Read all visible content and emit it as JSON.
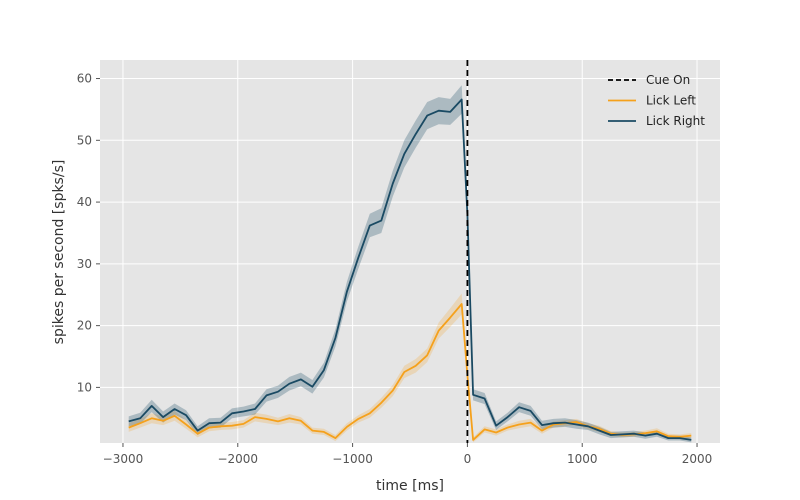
{
  "chart_data": {
    "type": "line",
    "xlabel": "time [ms]",
    "ylabel": "spikes per second [spks/s]",
    "xlim": [
      -3200,
      2200
    ],
    "ylim": [
      1,
      63
    ],
    "xticks": [
      -3000,
      -2000,
      -1000,
      0,
      1000,
      2000
    ],
    "yticks": [
      10,
      20,
      30,
      40,
      50,
      60
    ],
    "xtick_labels": [
      "−3000",
      "−2000",
      "−1000",
      "0",
      "1000",
      "2000"
    ],
    "ytick_labels": [
      "10",
      "20",
      "30",
      "40",
      "50",
      "60"
    ],
    "grid": true,
    "legend_position": "top-right",
    "cue": {
      "name": "Cue On",
      "x": 0,
      "color": "#000000"
    },
    "x": [
      -2950,
      -2850,
      -2750,
      -2650,
      -2550,
      -2450,
      -2350,
      -2250,
      -2150,
      -2050,
      -1950,
      -1850,
      -1750,
      -1650,
      -1550,
      -1450,
      -1350,
      -1250,
      -1150,
      -1050,
      -950,
      -850,
      -750,
      -650,
      -550,
      -450,
      -350,
      -250,
      -150,
      -50,
      0,
      50,
      150,
      250,
      350,
      450,
      550,
      650,
      750,
      850,
      950,
      1050,
      1150,
      1250,
      1350,
      1450,
      1550,
      1650,
      1750,
      1850,
      1950
    ],
    "series": [
      {
        "name": "Lick Left",
        "color": "#f5a11c",
        "values": [
          3.5,
          4.2,
          5.0,
          4.6,
          5.4,
          4.0,
          2.5,
          3.5,
          3.7,
          3.8,
          4.1,
          5.2,
          4.9,
          4.5,
          5.0,
          4.6,
          3.0,
          2.8,
          1.8,
          3.6,
          4.9,
          5.8,
          7.5,
          9.5,
          12.5,
          13.5,
          15.2,
          19.2,
          21.3,
          23.5,
          12.0,
          1.5,
          3.2,
          2.7,
          3.5,
          4.0,
          4.3,
          3.0,
          4.0,
          4.2,
          4.4,
          3.7,
          3.3,
          2.5,
          2.3,
          2.4,
          2.6,
          2.9,
          2.1,
          2.0,
          2.2
        ],
        "errors": [
          0.7,
          0.7,
          0.8,
          0.7,
          0.8,
          0.7,
          0.6,
          0.6,
          0.6,
          0.6,
          0.6,
          0.7,
          0.7,
          0.6,
          0.7,
          0.6,
          0.5,
          0.5,
          0.5,
          0.6,
          0.6,
          0.7,
          0.8,
          0.9,
          1.0,
          1.1,
          1.1,
          1.3,
          1.5,
          1.7,
          1.0,
          0.4,
          0.5,
          0.5,
          0.5,
          0.6,
          0.6,
          0.5,
          0.5,
          0.5,
          0.5,
          0.5,
          0.5,
          0.4,
          0.4,
          0.4,
          0.4,
          0.5,
          0.4,
          0.4,
          0.4
        ]
      },
      {
        "name": "Lick Right",
        "color": "#1a4a63",
        "values": [
          4.5,
          5.0,
          7.0,
          5.2,
          6.5,
          5.5,
          3.0,
          4.2,
          4.3,
          5.8,
          6.1,
          6.5,
          8.7,
          9.3,
          10.6,
          11.3,
          10.1,
          12.8,
          18.0,
          25.5,
          31.0,
          36.2,
          37.0,
          43.0,
          47.8,
          51.0,
          54.0,
          54.8,
          54.6,
          56.6,
          38.0,
          8.8,
          8.2,
          3.8,
          5.2,
          6.8,
          6.2,
          3.9,
          4.2,
          4.3,
          4.0,
          3.7,
          3.0,
          2.3,
          2.4,
          2.5,
          2.2,
          2.5,
          1.8,
          1.8,
          1.5
        ],
        "errors": [
          0.8,
          0.9,
          1.0,
          0.9,
          0.9,
          0.8,
          0.7,
          0.8,
          0.8,
          0.8,
          0.8,
          0.9,
          1.0,
          1.0,
          1.1,
          1.1,
          1.1,
          1.2,
          1.4,
          1.6,
          1.8,
          1.9,
          2.0,
          2.1,
          2.2,
          2.2,
          2.2,
          2.2,
          2.1,
          2.3,
          1.5,
          0.9,
          0.9,
          0.7,
          0.7,
          0.8,
          0.8,
          0.7,
          0.7,
          0.7,
          0.7,
          0.6,
          0.6,
          0.5,
          0.5,
          0.5,
          0.5,
          0.5,
          0.4,
          0.4,
          0.4
        ]
      }
    ]
  },
  "legend": {
    "items": [
      {
        "label": "Cue On",
        "color": "#000000",
        "style": "dashed"
      },
      {
        "label": "Lick Left",
        "color": "#f5a11c",
        "style": "solid"
      },
      {
        "label": "Lick Right",
        "color": "#1a4a63",
        "style": "solid"
      }
    ]
  }
}
